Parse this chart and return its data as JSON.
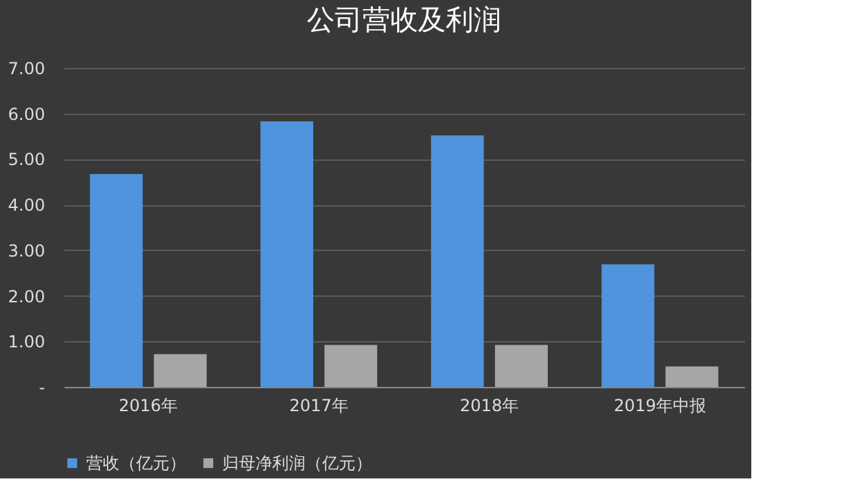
{
  "chart_data": {
    "type": "bar",
    "title": "公司营收及利润",
    "categories": [
      "2016年",
      "2017年",
      "2018年",
      "2019年中报"
    ],
    "series": [
      {
        "name": "营收（亿元）",
        "color": "#4f94dc",
        "values": [
          4.67,
          5.83,
          5.52,
          2.69
        ]
      },
      {
        "name": "归母净利润（亿元）",
        "color": "#a6a6a6",
        "values": [
          0.72,
          0.92,
          0.92,
          0.45
        ]
      }
    ],
    "ylim": [
      0,
      7
    ],
    "yticks": [
      {
        "value": 0,
        "label": "-"
      },
      {
        "value": 1,
        "label": "1.00"
      },
      {
        "value": 2,
        "label": "2.00"
      },
      {
        "value": 3,
        "label": "3.00"
      },
      {
        "value": 4,
        "label": "4.00"
      },
      {
        "value": 5,
        "label": "5.00"
      },
      {
        "value": 6,
        "label": "6.00"
      },
      {
        "value": 7,
        "label": "7.00"
      }
    ],
    "grid": "y",
    "legend": "bottom"
  }
}
